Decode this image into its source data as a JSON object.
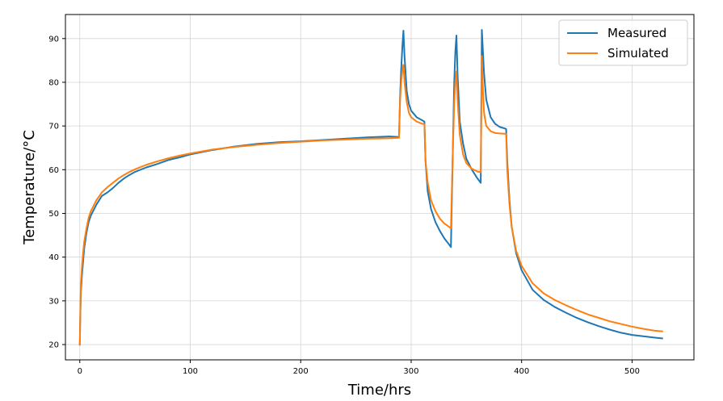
{
  "chart_data": {
    "type": "line",
    "title": "",
    "xlabel": "Time/hrs",
    "ylabel": "Temperature/°C",
    "xlim": [
      -13,
      556
    ],
    "ylim": [
      16.5,
      95.5
    ],
    "xticks": [
      0,
      100,
      200,
      300,
      400,
      500
    ],
    "yticks": [
      20,
      30,
      40,
      50,
      60,
      70,
      80,
      90
    ],
    "grid": true,
    "legend_position": "top-right",
    "series": [
      {
        "name": "Measured",
        "color": "#1f77b4",
        "points": [
          [
            0,
            19.8
          ],
          [
            0.5,
            27
          ],
          [
            1,
            32
          ],
          [
            2,
            36
          ],
          [
            3,
            39
          ],
          [
            4,
            42
          ],
          [
            6,
            45.5
          ],
          [
            8,
            48
          ],
          [
            10,
            49.5
          ],
          [
            15,
            52
          ],
          [
            20,
            54
          ],
          [
            25,
            54.8
          ],
          [
            30,
            55.8
          ],
          [
            35,
            57
          ],
          [
            40,
            58
          ],
          [
            45,
            58.8
          ],
          [
            50,
            59.5
          ],
          [
            60,
            60.5
          ],
          [
            70,
            61.3
          ],
          [
            80,
            62.2
          ],
          [
            90,
            62.8
          ],
          [
            100,
            63.5
          ],
          [
            120,
            64.5
          ],
          [
            140,
            65.3
          ],
          [
            160,
            65.9
          ],
          [
            180,
            66.3
          ],
          [
            200,
            66.5
          ],
          [
            220,
            66.8
          ],
          [
            240,
            67.1
          ],
          [
            260,
            67.4
          ],
          [
            280,
            67.6
          ],
          [
            289,
            67.5
          ],
          [
            290,
            77
          ],
          [
            291,
            83
          ],
          [
            292,
            88
          ],
          [
            293,
            91.8
          ],
          [
            294,
            86
          ],
          [
            296,
            78
          ],
          [
            298,
            75
          ],
          [
            300,
            73.5
          ],
          [
            305,
            72
          ],
          [
            310,
            71.3
          ],
          [
            312,
            71
          ],
          [
            313,
            62
          ],
          [
            315,
            55
          ],
          [
            318,
            51
          ],
          [
            322,
            48
          ],
          [
            326,
            46
          ],
          [
            330,
            44.3
          ],
          [
            334,
            43
          ],
          [
            336,
            42.3
          ],
          [
            337,
            55
          ],
          [
            338,
            68
          ],
          [
            339,
            80
          ],
          [
            340,
            87
          ],
          [
            341,
            90.7
          ],
          [
            342,
            82
          ],
          [
            344,
            71
          ],
          [
            347,
            66
          ],
          [
            350,
            62.5
          ],
          [
            355,
            60
          ],
          [
            360,
            58
          ],
          [
            363,
            57
          ],
          [
            364,
            92
          ],
          [
            366,
            82
          ],
          [
            368,
            76
          ],
          [
            372,
            72
          ],
          [
            376,
            70.5
          ],
          [
            380,
            69.8
          ],
          [
            384,
            69.5
          ],
          [
            386,
            69.3
          ],
          [
            387,
            62
          ],
          [
            389,
            53
          ],
          [
            391,
            47
          ],
          [
            395,
            41
          ],
          [
            400,
            37
          ],
          [
            410,
            32.5
          ],
          [
            420,
            30.2
          ],
          [
            430,
            28.6
          ],
          [
            440,
            27.3
          ],
          [
            450,
            26.1
          ],
          [
            460,
            25.1
          ],
          [
            470,
            24.2
          ],
          [
            480,
            23.4
          ],
          [
            490,
            22.7
          ],
          [
            500,
            22.2
          ],
          [
            510,
            21.9
          ],
          [
            520,
            21.6
          ],
          [
            528,
            21.4
          ]
        ]
      },
      {
        "name": "Simulated",
        "color": "#ff7f0e",
        "points": [
          [
            0,
            19.8
          ],
          [
            0.5,
            28
          ],
          [
            1,
            34
          ],
          [
            2,
            38
          ],
          [
            3,
            41
          ],
          [
            4,
            43.5
          ],
          [
            6,
            46.5
          ],
          [
            8,
            49
          ],
          [
            10,
            50.5
          ],
          [
            15,
            53
          ],
          [
            20,
            54.8
          ],
          [
            25,
            56
          ],
          [
            30,
            57
          ],
          [
            35,
            58
          ],
          [
            40,
            58.8
          ],
          [
            45,
            59.5
          ],
          [
            50,
            60.1
          ],
          [
            60,
            61.1
          ],
          [
            70,
            61.9
          ],
          [
            80,
            62.6
          ],
          [
            90,
            63.2
          ],
          [
            100,
            63.7
          ],
          [
            120,
            64.6
          ],
          [
            140,
            65.2
          ],
          [
            160,
            65.7
          ],
          [
            180,
            66.1
          ],
          [
            200,
            66.4
          ],
          [
            220,
            66.7
          ],
          [
            240,
            66.9
          ],
          [
            260,
            67.1
          ],
          [
            280,
            67.2
          ],
          [
            289,
            67.3
          ],
          [
            290,
            76
          ],
          [
            291,
            80
          ],
          [
            292,
            82.5
          ],
          [
            293,
            84
          ],
          [
            294,
            80
          ],
          [
            296,
            75.5
          ],
          [
            298,
            73
          ],
          [
            300,
            72
          ],
          [
            305,
            71
          ],
          [
            310,
            70.5
          ],
          [
            312,
            70.4
          ],
          [
            313,
            62
          ],
          [
            315,
            57
          ],
          [
            318,
            53
          ],
          [
            322,
            50.5
          ],
          [
            326,
            48.8
          ],
          [
            330,
            47.7
          ],
          [
            334,
            47
          ],
          [
            336,
            46.6
          ],
          [
            337,
            57
          ],
          [
            338,
            67
          ],
          [
            339,
            75
          ],
          [
            340,
            80
          ],
          [
            341,
            82.5
          ],
          [
            342,
            76
          ],
          [
            344,
            68
          ],
          [
            347,
            63.5
          ],
          [
            350,
            61.5
          ],
          [
            355,
            60.2
          ],
          [
            360,
            59.6
          ],
          [
            363,
            59.4
          ],
          [
            364,
            86
          ],
          [
            365,
            78
          ],
          [
            366,
            73
          ],
          [
            368,
            70
          ],
          [
            372,
            68.8
          ],
          [
            376,
            68.4
          ],
          [
            380,
            68.3
          ],
          [
            386,
            68.2
          ],
          [
            387,
            60
          ],
          [
            389,
            52
          ],
          [
            391,
            47
          ],
          [
            395,
            41.5
          ],
          [
            400,
            38
          ],
          [
            410,
            34
          ],
          [
            420,
            31.7
          ],
          [
            430,
            30.2
          ],
          [
            440,
            29
          ],
          [
            450,
            27.9
          ],
          [
            460,
            26.9
          ],
          [
            470,
            26.1
          ],
          [
            480,
            25.3
          ],
          [
            490,
            24.7
          ],
          [
            500,
            24.1
          ],
          [
            510,
            23.6
          ],
          [
            520,
            23.2
          ],
          [
            528,
            23
          ]
        ]
      }
    ]
  }
}
